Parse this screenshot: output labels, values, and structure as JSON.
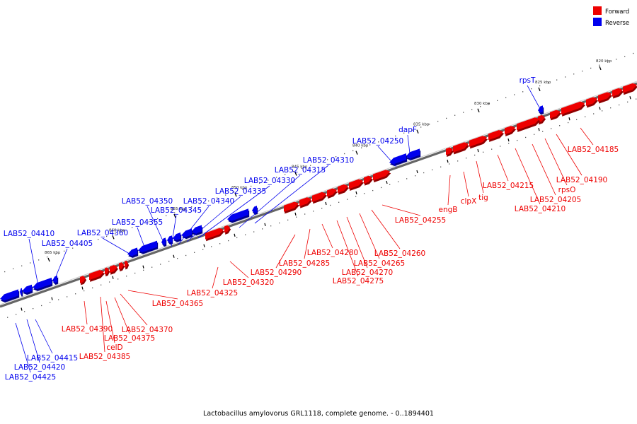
{
  "legend": {
    "forward_label": "Forward",
    "reverse_label": "Reverse",
    "forward_color": "#ee0000",
    "reverse_color": "#0000ee"
  },
  "caption": "Lactobacillus amylovorus GRL1118, complete genome. - 0..1894401",
  "ticks": [
    "820 kbp",
    "825 kbp",
    "830 kbp",
    "835 kbp",
    "840 kbp",
    "845 kbp",
    "850 kbp",
    "855 kbp",
    "860 kbp",
    "865 kbp"
  ],
  "forward_genes": [
    "LAB52_04185",
    "LAB52_04190",
    "rpsO",
    "LAB52_04205",
    "LAB52_04210",
    "LAB52_04215",
    "tig",
    "clpX",
    "engB",
    "LAB52_04255",
    "LAB52_04260",
    "LAB52_04265",
    "LAB52_04270",
    "LAB52_04275",
    "LAB52_04280",
    "LAB52_04285",
    "LAB52_04290",
    "LAB52_04320",
    "LAB52_04325",
    "LAB52_04365",
    "LAB52_04370",
    "LAB52_04375",
    "celD",
    "LAB52_04385",
    "LAB52_04390"
  ],
  "reverse_genes": [
    "rpsT",
    "dapF",
    "LAB52_04250",
    "LAB52_04310",
    "LAB52_04315",
    "LAB52_04330",
    "LAB52_04335",
    "LAB52_04340",
    "LAB52_04345",
    "LAB52_04350",
    "LAB52_04355",
    "LAB52_04360",
    "LAB52_04405",
    "LAB52_04410",
    "LAB52_04415",
    "LAB52_04420",
    "LAB52_04425"
  ]
}
